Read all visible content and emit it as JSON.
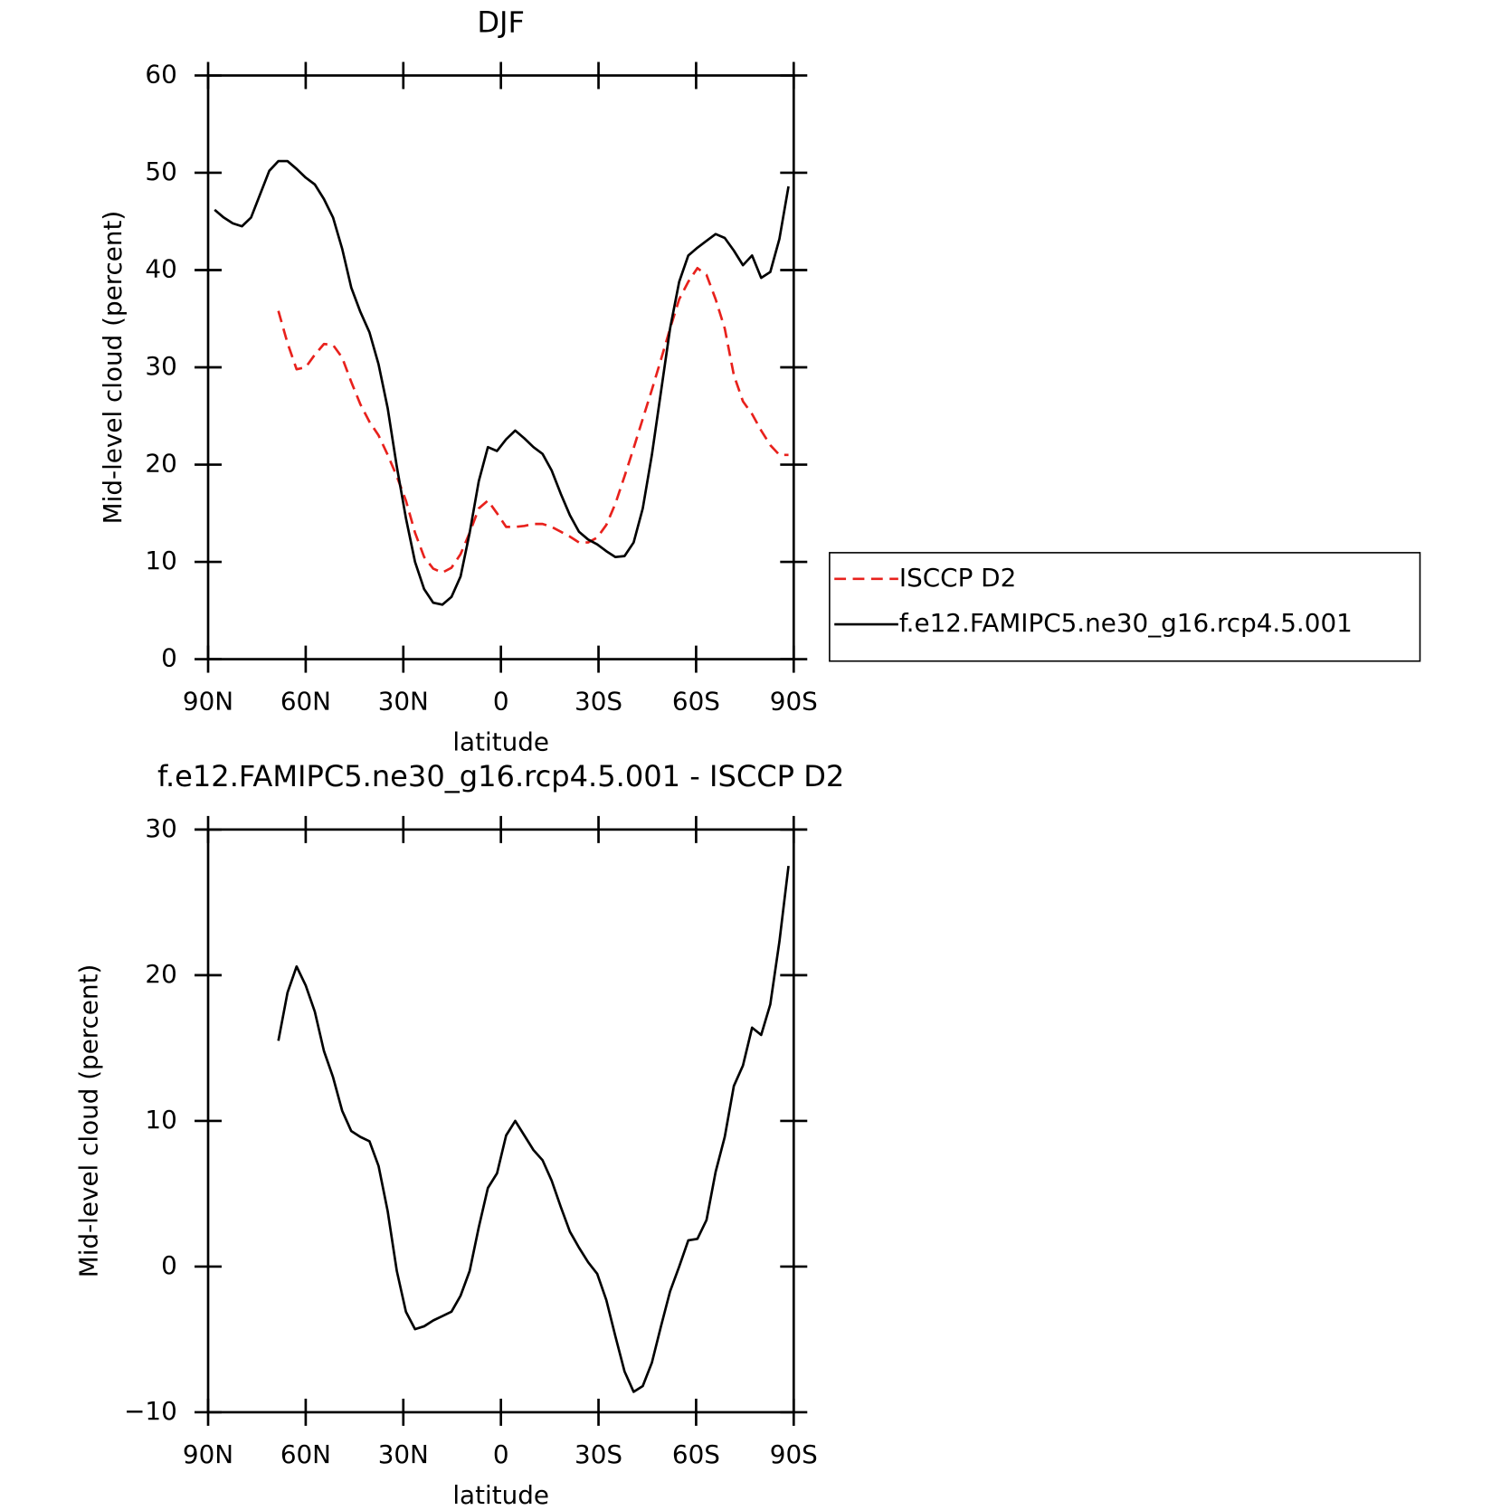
{
  "chart_data": [
    {
      "type": "line",
      "title": "DJF",
      "xlabel": "latitude",
      "ylabel": "Mid-level cloud (percent)",
      "x": [
        88,
        85.2,
        82.4,
        79.6,
        76.8,
        74,
        71.2,
        68.4,
        65.6,
        62.8,
        60,
        57.2,
        54.4,
        51.6,
        48.8,
        46,
        43.2,
        40.4,
        37.6,
        34.8,
        32,
        29.2,
        26.4,
        23.6,
        20.8,
        18,
        15.2,
        12.4,
        9.6,
        6.8,
        4,
        1.2,
        -1.6,
        -4.4,
        -7.2,
        -10,
        -12.8,
        -15.6,
        -18.4,
        -21.2,
        -24,
        -26.8,
        -29.6,
        -32.4,
        -35.2,
        -38,
        -40.8,
        -43.6,
        -46.4,
        -49.2,
        -52,
        -54.8,
        -57.6,
        -60.4,
        -63.2,
        -66,
        -68.8,
        -71.6,
        -74.4,
        -77.2,
        -80,
        -82.8,
        -85.6,
        -88.4
      ],
      "xlim": [
        90,
        -90
      ],
      "xticks": [
        {
          "value": 90,
          "label": "90N"
        },
        {
          "value": 60,
          "label": "60N"
        },
        {
          "value": 30,
          "label": "30N"
        },
        0,
        {
          "value": -30,
          "label": "30S"
        },
        {
          "value": -60,
          "label": "60S"
        },
        {
          "value": -90,
          "label": "90S"
        }
      ],
      "ylim": [
        0,
        60
      ],
      "yticks": [
        0,
        10,
        20,
        30,
        40,
        50,
        60
      ],
      "legend": "right",
      "series": [
        {
          "name": "ISCCP D2",
          "color": "#e8211c",
          "dashed": true,
          "values": [
            null,
            null,
            null,
            null,
            null,
            null,
            null,
            35.8,
            32.5,
            29.8,
            30,
            31.3,
            32.4,
            32.3,
            31,
            28.5,
            26.2,
            24.4,
            23,
            21,
            18.8,
            16.3,
            13,
            10.5,
            9.3,
            8.9,
            9.4,
            10.8,
            13,
            15.5,
            16.3,
            15,
            13.6,
            13.6,
            13.7,
            13.9,
            13.9,
            13.6,
            13.1,
            12.6,
            12,
            12,
            12.5,
            13.8,
            16,
            18.8,
            21.7,
            24.7,
            27.7,
            30.8,
            34,
            37,
            38.8,
            40.2,
            39.5,
            37,
            34,
            29.2,
            26.5,
            25.2,
            23.5,
            22,
            21,
            21
          ]
        },
        {
          "name": "f.e12.FAMIPC5.ne30_g16.rcp4.5.001",
          "color": "#000000",
          "dashed": false,
          "values": [
            46.2,
            45.4,
            44.8,
            44.5,
            45.4,
            47.8,
            50.2,
            51.2,
            51.2,
            50.4,
            49.5,
            48.8,
            47.3,
            45.4,
            42.2,
            38.2,
            35.7,
            33.6,
            30.3,
            25.8,
            19.8,
            14.5,
            10,
            7.2,
            5.8,
            5.6,
            6.4,
            8.5,
            13,
            18.3,
            21.8,
            21.4,
            22.6,
            23.5,
            22.7,
            21.8,
            21.1,
            19.4,
            17,
            14.8,
            13.1,
            12.3,
            11.8,
            11.1,
            10.5,
            10.6,
            12,
            15.5,
            21,
            27.5,
            34,
            38.8,
            41.5,
            42.3,
            43,
            43.7,
            43.3,
            42,
            40.5,
            41.5,
            39.2,
            39.8,
            43.2,
            48.6
          ]
        }
      ]
    },
    {
      "type": "line",
      "title": "f.e12.FAMIPC5.ne30_g16.rcp4.5.001 - ISCCP D2",
      "xlabel": "latitude",
      "ylabel": "Mid-level cloud (percent)",
      "x": [
        88,
        85.2,
        82.4,
        79.6,
        76.8,
        74,
        71.2,
        68.4,
        65.6,
        62.8,
        60,
        57.2,
        54.4,
        51.6,
        48.8,
        46,
        43.2,
        40.4,
        37.6,
        34.8,
        32,
        29.2,
        26.4,
        23.6,
        20.8,
        18,
        15.2,
        12.4,
        9.6,
        6.8,
        4,
        1.2,
        -1.6,
        -4.4,
        -7.2,
        -10,
        -12.8,
        -15.6,
        -18.4,
        -21.2,
        -24,
        -26.8,
        -29.6,
        -32.4,
        -35.2,
        -38,
        -40.8,
        -43.6,
        -46.4,
        -49.2,
        -52,
        -54.8,
        -57.6,
        -60.4,
        -63.2,
        -66,
        -68.8,
        -71.6,
        -74.4,
        -77.2,
        -80,
        -82.8,
        -85.6,
        -88.4
      ],
      "xlim": [
        90,
        -90
      ],
      "xticks": [
        {
          "value": 90,
          "label": "90N"
        },
        {
          "value": 60,
          "label": "60N"
        },
        {
          "value": 30,
          "label": "30N"
        },
        0,
        {
          "value": -30,
          "label": "30S"
        },
        {
          "value": -60,
          "label": "60S"
        },
        {
          "value": -90,
          "label": "90S"
        }
      ],
      "ylim": [
        -10,
        30
      ],
      "yticks": [
        {
          "value": -10,
          "label": "−10"
        },
        0,
        10,
        20,
        30
      ],
      "series": [
        {
          "color": "#000000",
          "dashed": false,
          "values": [
            null,
            null,
            null,
            null,
            null,
            null,
            null,
            15.5,
            18.8,
            20.6,
            19.3,
            17.5,
            14.8,
            13,
            10.7,
            9.3,
            8.9,
            8.6,
            6.9,
            3.8,
            -0.3,
            -3.1,
            -4.3,
            -4.1,
            -3.7,
            -3.4,
            -3.1,
            -2,
            -0.3,
            2.7,
            5.4,
            6.4,
            9,
            10,
            9,
            8,
            7.3,
            5.9,
            4.1,
            2.4,
            1.3,
            0.3,
            -0.5,
            -2.3,
            -4.8,
            -7.2,
            -8.6,
            -8.2,
            -6.6,
            -4.1,
            -1.7,
            0,
            1.8,
            1.9,
            3.2,
            6.5,
            8.9,
            12.4,
            13.8,
            16.4,
            15.9,
            18,
            22.3,
            27.5
          ]
        }
      ]
    }
  ]
}
